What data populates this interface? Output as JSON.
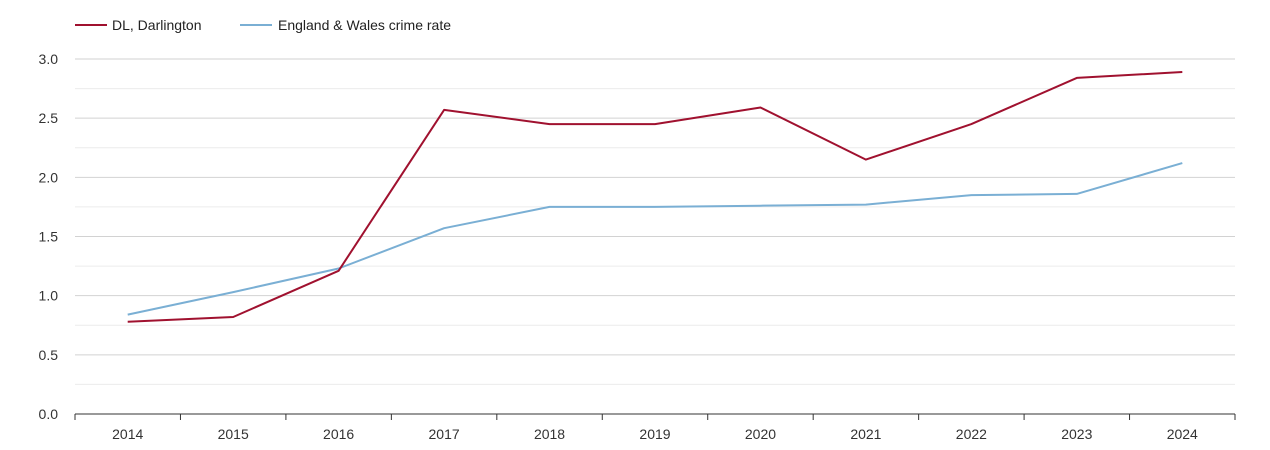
{
  "chart_data": {
    "type": "line",
    "title": "",
    "xlabel": "",
    "ylabel": "",
    "x": [
      "2014",
      "2015",
      "2016",
      "2017",
      "2018",
      "2019",
      "2020",
      "2021",
      "2022",
      "2023",
      "2024"
    ],
    "ylim": [
      0,
      3
    ],
    "yticks": [
      "0.0",
      "0.5",
      "1.0",
      "1.5",
      "2.0",
      "2.5",
      "3.0"
    ],
    "grid": true,
    "legend_position": "top-left",
    "series": [
      {
        "name": "DL, Darlington",
        "color": "#a0112f",
        "values": [
          0.78,
          0.82,
          1.21,
          2.57,
          2.45,
          2.45,
          2.59,
          2.15,
          2.45,
          2.84,
          2.89
        ]
      },
      {
        "name": "England & Wales crime rate",
        "color": "#7aafd4",
        "values": [
          0.84,
          1.03,
          1.23,
          1.57,
          1.75,
          1.75,
          1.76,
          1.77,
          1.85,
          1.86,
          2.12
        ]
      }
    ]
  }
}
